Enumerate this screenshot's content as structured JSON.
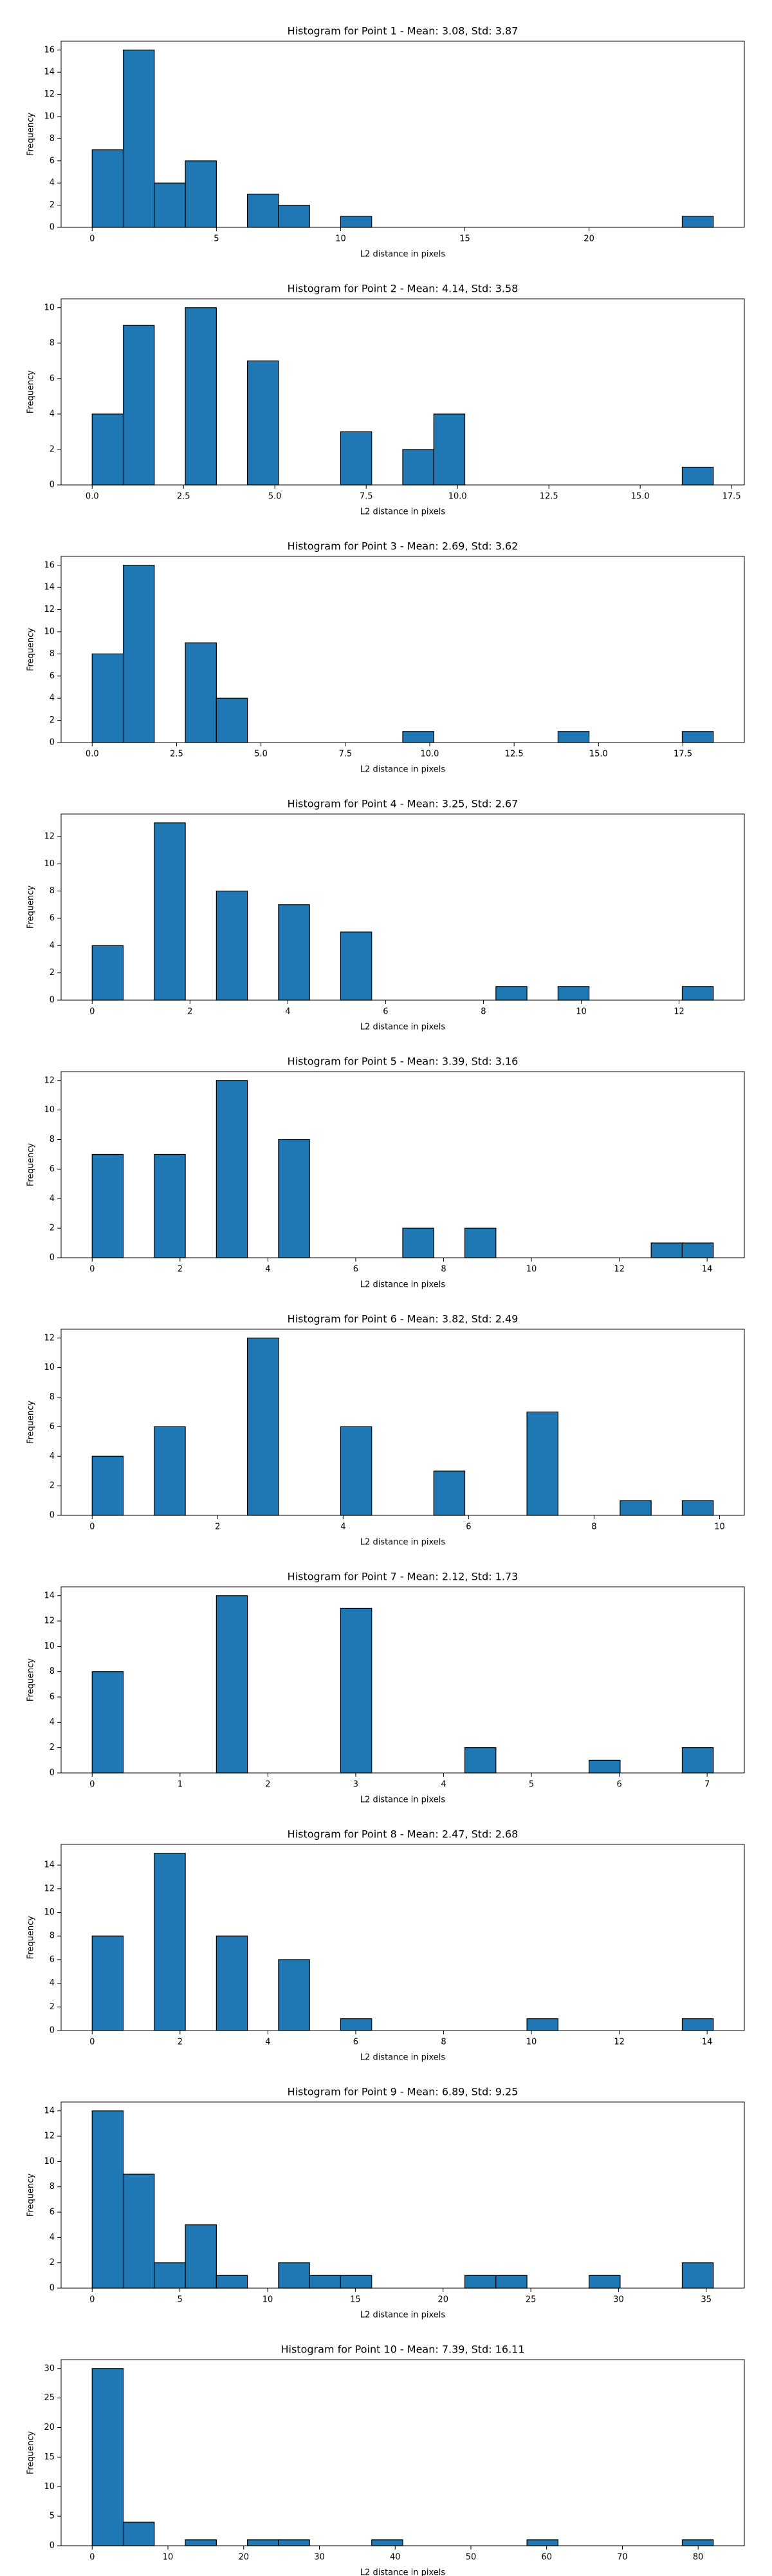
{
  "chart_data": [
    {
      "type": "histogram",
      "title": "Histogram for Point 1 - Mean: 3.08, Std: 3.87",
      "xlabel": "L2 distance in pixels",
      "ylabel": "Frequency",
      "color": "#1f77b4",
      "edgecolor": "#000000",
      "bins": [
        0,
        1.25,
        2.5,
        3.75,
        5,
        6.25,
        7.5,
        8.75,
        10,
        11.25,
        12.5,
        13.75,
        15,
        16.25,
        17.5,
        18.75,
        20,
        21.25,
        22.5,
        23.75,
        25
      ],
      "values": [
        7,
        16,
        4,
        6,
        0,
        3,
        2,
        0,
        1,
        0,
        0,
        0,
        0,
        0,
        0,
        0,
        0,
        0,
        0,
        1
      ],
      "xlim": [
        -1.25,
        26.25
      ],
      "xticks": [
        0,
        5,
        10,
        15,
        20
      ],
      "ylim": [
        0,
        16.8
      ],
      "yticks": [
        0,
        2,
        4,
        6,
        8,
        10,
        12,
        14,
        16
      ]
    },
    {
      "type": "histogram",
      "title": "Histogram for Point 2 - Mean: 4.14, Std: 3.58",
      "xlabel": "L2 distance in pixels",
      "ylabel": "Frequency",
      "color": "#1f77b4",
      "edgecolor": "#000000",
      "bins": [
        0,
        0.85,
        1.7,
        2.55,
        3.4,
        4.25,
        5.1,
        5.95,
        6.8,
        7.65,
        8.5,
        9.35,
        10.2,
        11.05,
        11.9,
        12.75,
        13.6,
        14.45,
        15.3,
        16.15,
        17
      ],
      "values": [
        4,
        9,
        0,
        10,
        0,
        7,
        0,
        0,
        3,
        0,
        2,
        4,
        0,
        0,
        0,
        0,
        0,
        0,
        0,
        1
      ],
      "xlim": [
        -0.85,
        17.85
      ],
      "xticks": [
        {
          "value": 0,
          "label": "0.0"
        },
        2.5,
        {
          "value": 5,
          "label": "5.0"
        },
        7.5,
        {
          "value": 10,
          "label": "10.0"
        },
        12.5,
        {
          "value": 15,
          "label": "15.0"
        },
        17.5
      ],
      "ylim": [
        0,
        10.5
      ],
      "yticks": [
        0,
        2,
        4,
        6,
        8,
        10
      ]
    },
    {
      "type": "histogram",
      "title": "Histogram for Point 3 - Mean: 2.69, Std: 3.62",
      "xlabel": "L2 distance in pixels",
      "ylabel": "Frequency",
      "color": "#1f77b4",
      "edgecolor": "#000000",
      "bins": [
        0,
        0.92,
        1.84,
        2.76,
        3.68,
        4.6,
        5.52,
        6.44,
        7.36,
        8.28,
        9.2,
        10.12,
        11.04,
        11.96,
        12.88,
        13.8,
        14.72,
        15.64,
        16.56,
        17.48,
        18.4
      ],
      "values": [
        8,
        16,
        0,
        9,
        4,
        0,
        0,
        0,
        0,
        0,
        1,
        0,
        0,
        0,
        0,
        1,
        0,
        0,
        0,
        1
      ],
      "xlim": [
        -0.92,
        19.32
      ],
      "xticks": [
        {
          "value": 0,
          "label": "0.0"
        },
        2.5,
        {
          "value": 5,
          "label": "5.0"
        },
        7.5,
        {
          "value": 10,
          "label": "10.0"
        },
        12.5,
        {
          "value": 15,
          "label": "15.0"
        },
        17.5
      ],
      "ylim": [
        0,
        16.8
      ],
      "yticks": [
        0,
        2,
        4,
        6,
        8,
        10,
        12,
        14,
        16
      ]
    },
    {
      "type": "histogram",
      "title": "Histogram for Point 4 - Mean: 3.25, Std: 2.67",
      "xlabel": "L2 distance in pixels",
      "ylabel": "Frequency",
      "color": "#1f77b4",
      "edgecolor": "#000000",
      "bins": [
        0,
        0.635,
        1.27,
        1.905,
        2.54,
        3.175,
        3.81,
        4.445,
        5.08,
        5.715,
        6.35,
        6.985,
        7.62,
        8.255,
        8.89,
        9.525,
        10.16,
        10.795,
        11.43,
        12.065,
        12.7
      ],
      "values": [
        4,
        0,
        13,
        0,
        8,
        0,
        7,
        0,
        5,
        0,
        0,
        0,
        0,
        1,
        0,
        1,
        0,
        0,
        0,
        1
      ],
      "xlim": [
        -0.635,
        13.335
      ],
      "xticks": [
        0,
        2,
        4,
        6,
        8,
        10,
        12
      ],
      "ylim": [
        0,
        13.65
      ],
      "yticks": [
        0,
        2,
        4,
        6,
        8,
        10,
        12
      ]
    },
    {
      "type": "histogram",
      "title": "Histogram for Point 5 - Mean: 3.39, Std: 3.16",
      "xlabel": "L2 distance in pixels",
      "ylabel": "Frequency",
      "color": "#1f77b4",
      "edgecolor": "#000000",
      "bins": [
        0,
        0.707,
        1.414,
        2.121,
        2.828,
        3.535,
        4.242,
        4.949,
        5.656,
        6.363,
        7.07,
        7.777,
        8.484,
        9.191,
        9.898,
        10.605,
        11.312,
        12.019,
        12.726,
        13.433,
        14.14
      ],
      "values": [
        7,
        0,
        7,
        0,
        12,
        0,
        8,
        0,
        0,
        0,
        2,
        0,
        2,
        0,
        0,
        0,
        0,
        0,
        1,
        1
      ],
      "xlim": [
        -0.707,
        14.847
      ],
      "xticks": [
        0,
        2,
        4,
        6,
        8,
        10,
        12,
        14
      ],
      "ylim": [
        0,
        12.6
      ],
      "yticks": [
        0,
        2,
        4,
        6,
        8,
        10,
        12
      ]
    },
    {
      "type": "histogram",
      "title": "Histogram for Point 6 - Mean: 3.82, Std: 2.49",
      "xlabel": "L2 distance in pixels",
      "ylabel": "Frequency",
      "color": "#1f77b4",
      "edgecolor": "#000000",
      "bins": [
        0,
        0.495,
        0.99,
        1.485,
        1.98,
        2.475,
        2.97,
        3.465,
        3.96,
        4.455,
        4.95,
        5.445,
        5.94,
        6.435,
        6.93,
        7.425,
        7.92,
        8.415,
        8.91,
        9.405,
        9.9
      ],
      "values": [
        4,
        0,
        6,
        0,
        0,
        12,
        0,
        0,
        6,
        0,
        0,
        3,
        0,
        0,
        7,
        0,
        0,
        1,
        0,
        1
      ],
      "xlim": [
        -0.495,
        10.395
      ],
      "xticks": [
        0,
        2,
        4,
        6,
        8,
        10
      ],
      "ylim": [
        0,
        12.6
      ],
      "yticks": [
        0,
        2,
        4,
        6,
        8,
        10,
        12
      ]
    },
    {
      "type": "histogram",
      "title": "Histogram for Point 7 - Mean: 2.12, Std: 1.73",
      "xlabel": "L2 distance in pixels",
      "ylabel": "Frequency",
      "color": "#1f77b4",
      "edgecolor": "#000000",
      "bins": [
        0,
        0.3535,
        0.707,
        1.0605,
        1.414,
        1.7675,
        2.121,
        2.4745,
        2.828,
        3.1815,
        3.535,
        3.8885,
        4.242,
        4.5955,
        4.949,
        5.3025,
        5.656,
        6.0095,
        6.363,
        6.7165,
        7.07
      ],
      "values": [
        8,
        0,
        0,
        0,
        14,
        0,
        0,
        0,
        13,
        0,
        0,
        0,
        2,
        0,
        0,
        0,
        1,
        0,
        0,
        2
      ],
      "xlim": [
        -0.3535,
        7.4235
      ],
      "xticks": [
        0,
        1,
        2,
        3,
        4,
        5,
        6,
        7
      ],
      "ylim": [
        0,
        14.7
      ],
      "yticks": [
        0,
        2,
        4,
        6,
        8,
        10,
        12,
        14
      ]
    },
    {
      "type": "histogram",
      "title": "Histogram for Point 8 - Mean: 2.47, Std: 2.68",
      "xlabel": "L2 distance in pixels",
      "ylabel": "Frequency",
      "color": "#1f77b4",
      "edgecolor": "#000000",
      "bins": [
        0,
        0.707,
        1.414,
        2.121,
        2.828,
        3.535,
        4.242,
        4.949,
        5.656,
        6.363,
        7.07,
        7.777,
        8.484,
        9.191,
        9.898,
        10.605,
        11.312,
        12.019,
        12.726,
        13.433,
        14.14
      ],
      "values": [
        8,
        0,
        15,
        0,
        8,
        0,
        6,
        0,
        1,
        0,
        0,
        0,
        0,
        0,
        1,
        0,
        0,
        0,
        0,
        1
      ],
      "xlim": [
        -0.707,
        14.847
      ],
      "xticks": [
        0,
        2,
        4,
        6,
        8,
        10,
        12,
        14
      ],
      "ylim": [
        0,
        15.75
      ],
      "yticks": [
        0,
        2,
        4,
        6,
        8,
        10,
        12,
        14
      ]
    },
    {
      "type": "histogram",
      "title": "Histogram for Point 9 - Mean: 6.89, Std: 9.25",
      "xlabel": "L2 distance in pixels",
      "ylabel": "Frequency",
      "color": "#1f77b4",
      "edgecolor": "#000000",
      "bins": [
        0,
        1.77,
        3.54,
        5.31,
        7.08,
        8.85,
        10.62,
        12.39,
        14.16,
        15.93,
        17.7,
        19.47,
        21.24,
        23.01,
        24.78,
        26.55,
        28.32,
        30.09,
        31.86,
        33.63,
        35.4
      ],
      "values": [
        14,
        9,
        2,
        5,
        1,
        0,
        2,
        1,
        1,
        0,
        0,
        0,
        1,
        1,
        0,
        0,
        1,
        0,
        0,
        2
      ],
      "xlim": [
        -1.77,
        37.17
      ],
      "xticks": [
        0,
        5,
        10,
        15,
        20,
        25,
        30,
        35
      ],
      "ylim": [
        0,
        14.7
      ],
      "yticks": [
        0,
        2,
        4,
        6,
        8,
        10,
        12,
        14
      ]
    },
    {
      "type": "histogram",
      "title": "Histogram for Point 10 - Mean: 7.39, Std: 16.11",
      "xlabel": "L2 distance in pixels",
      "ylabel": "Frequency",
      "color": "#1f77b4",
      "edgecolor": "#000000",
      "bins": [
        0,
        4.1,
        8.2,
        12.3,
        16.4,
        20.5,
        24.6,
        28.7,
        32.8,
        36.9,
        41,
        45.1,
        49.2,
        53.3,
        57.4,
        61.5,
        65.6,
        69.7,
        73.8,
        77.9,
        82
      ],
      "values": [
        30,
        4,
        0,
        1,
        0,
        1,
        1,
        0,
        0,
        1,
        0,
        0,
        0,
        0,
        1,
        0,
        0,
        0,
        0,
        1
      ],
      "xlim": [
        -4.1,
        86.1
      ],
      "xticks": [
        0,
        10,
        20,
        30,
        40,
        50,
        60,
        70,
        80
      ],
      "ylim": [
        0,
        31.5
      ],
      "yticks": [
        0,
        5,
        10,
        15,
        20,
        25,
        30
      ]
    }
  ]
}
